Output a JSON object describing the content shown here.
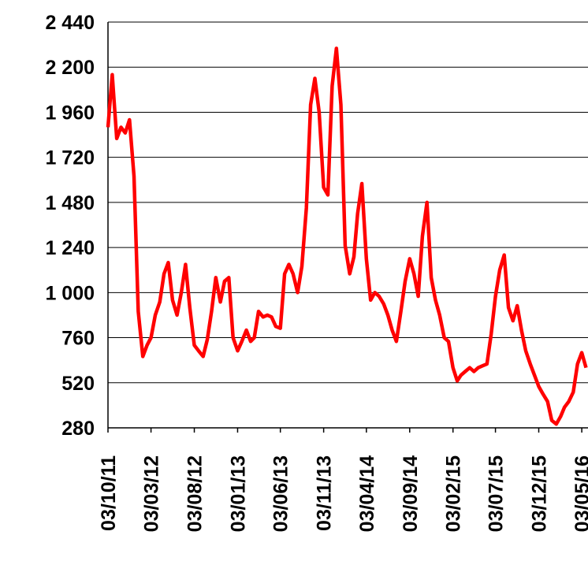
{
  "chart_data": {
    "type": "line",
    "x": [
      "03/10/11",
      "18/10/11",
      "03/11/11",
      "18/11/11",
      "03/12/11",
      "18/12/11",
      "03/01/12",
      "18/01/12",
      "03/02/12",
      "18/02/12",
      "03/03/12",
      "18/03/12",
      "03/04/12",
      "18/04/12",
      "03/05/12",
      "18/05/12",
      "03/06/12",
      "18/06/12",
      "03/07/12",
      "18/07/12",
      "03/08/12",
      "18/08/12",
      "03/09/12",
      "18/09/12",
      "03/10/12",
      "18/10/12",
      "03/11/12",
      "18/11/12",
      "03/12/12",
      "18/12/12",
      "03/01/13",
      "18/01/13",
      "03/02/13",
      "18/02/13",
      "03/03/13",
      "18/03/13",
      "03/04/13",
      "18/04/13",
      "03/05/13",
      "18/05/13",
      "03/06/13",
      "18/06/13",
      "03/07/13",
      "18/07/13",
      "03/08/13",
      "18/08/13",
      "03/09/13",
      "18/09/13",
      "03/10/13",
      "18/10/13",
      "03/11/13",
      "18/11/13",
      "03/12/13",
      "18/12/13",
      "03/01/14",
      "18/01/14",
      "03/02/14",
      "18/02/14",
      "03/03/14",
      "18/03/14",
      "03/04/14",
      "18/04/14",
      "03/05/14",
      "18/05/14",
      "03/06/14",
      "18/06/14",
      "03/07/14",
      "18/07/14",
      "03/08/14",
      "18/08/14",
      "03/09/14",
      "18/09/14",
      "03/10/14",
      "18/10/14",
      "03/11/14",
      "18/11/14",
      "03/12/14",
      "18/12/14",
      "03/01/15",
      "18/01/15",
      "03/02/15",
      "18/02/15",
      "03/03/15",
      "18/03/15",
      "03/04/15",
      "18/04/15",
      "03/05/15",
      "18/05/15",
      "03/06/15",
      "18/06/15",
      "03/07/15",
      "18/07/15",
      "03/08/15",
      "18/08/15",
      "03/09/15",
      "18/09/15",
      "03/10/15",
      "18/10/15",
      "03/11/15",
      "18/11/15",
      "03/12/15",
      "18/12/15",
      "03/01/16",
      "18/01/16",
      "03/02/16",
      "18/02/16",
      "03/03/16",
      "18/03/16",
      "03/04/16",
      "18/04/16",
      "03/05/16",
      "18/05/16"
    ],
    "series": [
      {
        "color": "#ff0000",
        "values": [
          1880,
          2160,
          1820,
          1880,
          1850,
          1920,
          1620,
          900,
          660,
          720,
          760,
          880,
          950,
          1100,
          1160,
          960,
          880,
          1000,
          1150,
          920,
          720,
          690,
          660,
          750,
          900,
          1080,
          950,
          1060,
          1080,
          760,
          690,
          740,
          800,
          740,
          760,
          900,
          870,
          880,
          870,
          820,
          810,
          1100,
          1150,
          1100,
          1000,
          1140,
          1450,
          2000,
          2140,
          1960,
          1560,
          1520,
          2100,
          2300,
          2000,
          1250,
          1100,
          1190,
          1420,
          1580,
          1180,
          960,
          1000,
          980,
          940,
          880,
          800,
          740,
          900,
          1060,
          1180,
          1100,
          980,
          1300,
          1480,
          1080,
          960,
          880,
          760,
          740,
          600,
          530,
          560,
          580,
          600,
          580,
          600,
          610,
          620,
          780,
          980,
          1120,
          1200,
          920,
          850,
          930,
          800,
          690,
          620,
          560,
          500,
          460,
          420,
          320,
          300,
          340,
          390,
          420,
          470,
          620,
          680,
          600
        ]
      }
    ],
    "xlim": [
      "03/10/11",
      "25/05/16"
    ],
    "xticks": [
      "03/10/11",
      "03/03/12",
      "03/08/12",
      "03/01/13",
      "03/06/13",
      "03/11/13",
      "03/04/14",
      "03/09/14",
      "03/02/15",
      "03/07/15",
      "03/12/15",
      "03/05/16"
    ],
    "ylim": [
      280,
      2440
    ],
    "yticks": [
      280,
      520,
      760,
      {
        "value": 1000,
        "label": "1 000"
      },
      {
        "value": 1240,
        "label": "1 240"
      },
      {
        "value": 1480,
        "label": "1 480"
      },
      {
        "value": 1720,
        "label": "1 720"
      },
      {
        "value": 1960,
        "label": "1 960"
      },
      {
        "value": 2200,
        "label": "2 200"
      },
      {
        "value": 2440,
        "label": "2 440"
      }
    ],
    "grid": true
  }
}
